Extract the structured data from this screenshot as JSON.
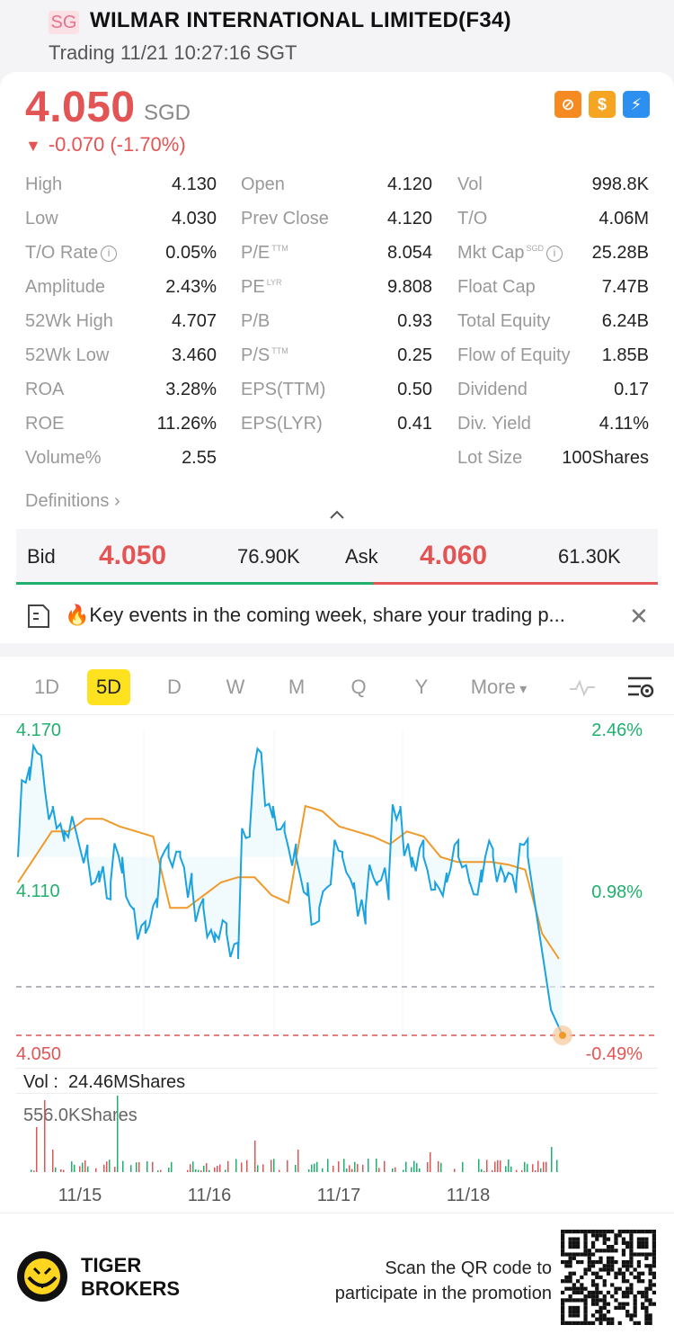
{
  "header": {
    "market_badge": "SG",
    "title": "WILMAR INTERNATIONAL LIMITED(F34)",
    "status": "Trading 11/21 10:27:16 SGT"
  },
  "quote": {
    "price": "4.050",
    "currency": "SGD",
    "change": "-0.070 (-1.70%)",
    "icons": [
      "no-margin-icon",
      "dollar-icon",
      "lightning-icon"
    ]
  },
  "stats": {
    "col1": [
      {
        "label": "High",
        "value": "4.130"
      },
      {
        "label": "Low",
        "value": "4.030"
      },
      {
        "label": "T/O Rate",
        "value": "0.05%"
      },
      {
        "label": "Amplitude",
        "value": "2.43%"
      },
      {
        "label": "52Wk High",
        "value": "4.707"
      },
      {
        "label": "52Wk Low",
        "value": "3.460"
      },
      {
        "label": "ROA",
        "value": "3.28%"
      },
      {
        "label": "ROE",
        "value": "11.26%"
      },
      {
        "label": "Volume%",
        "value": "2.55"
      }
    ],
    "col2": [
      {
        "label": "Open",
        "value": "4.120"
      },
      {
        "label": "Prev Close",
        "value": "4.120"
      },
      {
        "label": "P/E",
        "sup": "TTM",
        "value": "8.054"
      },
      {
        "label": "PE",
        "sup": "LYR",
        "value": "9.808"
      },
      {
        "label": "P/B",
        "value": "0.93"
      },
      {
        "label": "P/S",
        "sup": "TTM",
        "value": "0.25"
      },
      {
        "label": "EPS(TTM)",
        "value": "0.50"
      },
      {
        "label": "EPS(LYR)",
        "value": "0.41"
      }
    ],
    "col3": [
      {
        "label": "Vol",
        "value": "998.8K"
      },
      {
        "label": "T/O",
        "value": "4.06M"
      },
      {
        "label": "Mkt Cap",
        "sup": "SGD",
        "value": "25.28B"
      },
      {
        "label": "Float Cap",
        "value": "7.47B"
      },
      {
        "label": "Total Equity",
        "value": "6.24B"
      },
      {
        "label": "Flow of Equity",
        "value": "1.85B"
      },
      {
        "label": "Dividend",
        "value": "0.17"
      },
      {
        "label": "Div. Yield",
        "value": "4.11%"
      },
      {
        "label": "Lot Size",
        "value": "100Shares"
      }
    ],
    "definitions": "Definitions"
  },
  "bidask": {
    "bid_label": "Bid",
    "bid_price": "4.050",
    "bid_size": "76.90K",
    "ask_label": "Ask",
    "ask_price": "4.060",
    "ask_size": "61.30K"
  },
  "news": {
    "text": "🔥Key events in the coming week, share your trading p..."
  },
  "tabs": {
    "items": [
      "1D",
      "5D",
      "D",
      "W",
      "M",
      "Q",
      "Y",
      "More"
    ],
    "active": "5D"
  },
  "chart_data": {
    "type": "line",
    "period": "5D",
    "y_left_labels": {
      "top": "4.170",
      "mid": "4.110",
      "bottom": "4.050"
    },
    "y_right_labels": {
      "top": "2.46%",
      "mid": "0.98%",
      "bottom": "-0.49%"
    },
    "ylim": [
      4.05,
      4.17
    ],
    "prev_close": 4.12,
    "current_price": 4.05,
    "x_labels": [
      "11/15",
      "11/16",
      "11/17",
      "11/18"
    ],
    "series": [
      {
        "values": [
          4.12,
          4.15,
          4.16,
          4.14,
          4.13,
          4.13,
          4.12,
          4.11,
          4.11,
          4.12,
          4.1,
          4.09,
          4.1,
          4.12,
          4.12,
          4.11,
          4.1,
          4.09,
          4.09,
          4.08,
          4.13,
          4.16,
          4.14,
          4.13,
          4.12,
          4.11,
          4.1,
          4.11,
          4.12,
          4.11,
          4.1,
          4.11,
          4.11,
          4.14,
          4.12,
          4.12,
          4.11,
          4.11,
          4.12,
          4.11,
          4.11,
          4.12,
          4.11,
          4.11,
          4.12,
          4.09,
          4.06,
          4.05
        ]
      },
      {
        "values": [
          4.11,
          4.12,
          4.13,
          4.13,
          4.135,
          4.135,
          4.132,
          4.13,
          4.128,
          4.1,
          4.1,
          4.105,
          4.11,
          4.112,
          4.112,
          4.105,
          4.102,
          4.14,
          4.138,
          4.132,
          4.13,
          4.128,
          4.125,
          4.13,
          4.128,
          4.12,
          4.118,
          4.118,
          4.118,
          4.117,
          4.115,
          4.09,
          4.08
        ]
      }
    ],
    "volume": {
      "label": "Vol :",
      "total": "24.46MShares",
      "max_label": "556.0KShares"
    }
  },
  "footer": {
    "brand_line1": "TIGER",
    "brand_line2": "BROKERS",
    "promo_line1": "Scan the QR code to",
    "promo_line2": "participate in the promotion"
  },
  "colors": {
    "up": "#1fb06e",
    "down": "#e35454",
    "line": "#1aa3e0",
    "avg": "#f09a2a",
    "active_tab": "#ffe21f"
  }
}
